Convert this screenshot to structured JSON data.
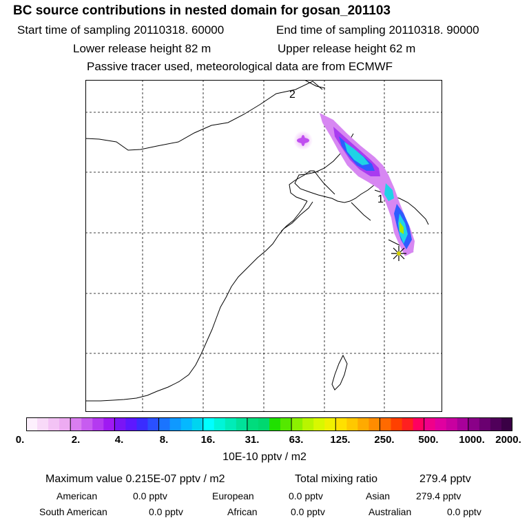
{
  "header": {
    "title": "BC  source contributions in nested domain for gosan_201103",
    "start_time": "Start time of sampling 20110318. 60000",
    "end_time": "End time of sampling 20110318. 90000",
    "lower_release": "Lower release height   82 m",
    "upper_release": "Upper release height   62 m",
    "tracer_note": "Passive tracer used, meteorological data are from ECMWF"
  },
  "map": {
    "labels": [
      "2",
      "1"
    ],
    "receptor_marker": "receptor-star-icon",
    "colors": {
      "coast": "#000000",
      "grid": "#000000",
      "receptor": "#d4d000"
    }
  },
  "colorbar": {
    "tick_labels": [
      "0.",
      "2.",
      "4.",
      "8.",
      "16.",
      "31.",
      "63.",
      "125.",
      "250.",
      "500.",
      "1000.",
      "2000."
    ],
    "unit_label": "10E-10 pptv / m2",
    "colors": [
      "#fdf0fd",
      "#f8daf8",
      "#f3c3f5",
      "#edabf2",
      "#d97ef0",
      "#c75cf0",
      "#b43af0",
      "#9f1af2",
      "#7a15f5",
      "#5d18ff",
      "#3a2cff",
      "#2a50ff",
      "#1a74ff",
      "#0f99ff",
      "#05b8ff",
      "#00d4f0",
      "#00ffff",
      "#00f5d8",
      "#00ecb8",
      "#00e29a",
      "#00dc7d",
      "#00d870",
      "#20e000",
      "#55e800",
      "#8cf000",
      "#b8f500",
      "#d8f800",
      "#f0f000",
      "#ffe000",
      "#ffc800",
      "#ffaa00",
      "#ff8c00",
      "#ff6a00",
      "#ff4000",
      "#ff2020",
      "#ff0060",
      "#f0008a",
      "#e000a0",
      "#c800a0",
      "#a8009a",
      "#8a0088",
      "#6a0070",
      "#50005a",
      "#3a0045"
    ]
  },
  "stats": {
    "maximum_value": "Maximum value  0.215E-07 pptv / m2",
    "total_mixing_label": "Total mixing ratio",
    "total_mixing_value": "279.4 pptv",
    "american_label": "American",
    "american_value": "0.0 pptv",
    "european_label": "European",
    "european_value": "0.0 pptv",
    "asian_label": "Asian",
    "asian_value": "279.4 pptv",
    "south_american_label": "South American",
    "south_american_value": "0.0 pptv",
    "african_label": "African",
    "african_value": "0.0 pptv",
    "australian_label": "Australian",
    "australian_value": "0.0 pptv"
  }
}
